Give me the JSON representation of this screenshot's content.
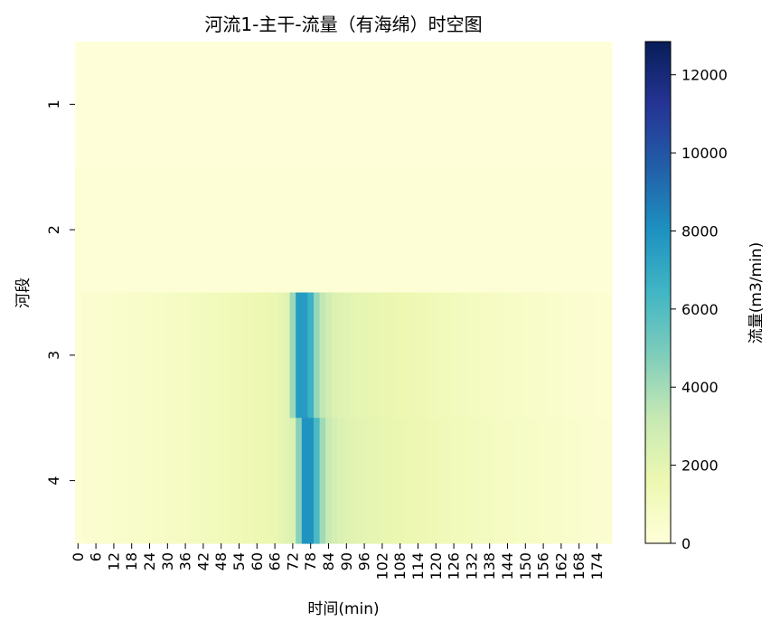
{
  "chart_data": {
    "type": "heatmap",
    "title": "河流1-主干-流量（有海绵）时空图",
    "xlabel": "时间(min)",
    "ylabel": "河段",
    "x_start": 0,
    "x_step": 2,
    "x_tick_labels": [
      "0",
      "6",
      "12",
      "18",
      "24",
      "30",
      "36",
      "42",
      "48",
      "54",
      "60",
      "66",
      "72",
      "78",
      "84",
      "90",
      "96",
      "102",
      "108",
      "114",
      "120",
      "126",
      "132",
      "138",
      "144",
      "150",
      "156",
      "162",
      "168",
      "174"
    ],
    "rows": [
      {
        "label": "1",
        "values": [
          45,
          45,
          45,
          45,
          45,
          45,
          45,
          45,
          45,
          45,
          45,
          45,
          45,
          45,
          45,
          45,
          45,
          45,
          45,
          45,
          45,
          45,
          45,
          45,
          45,
          45,
          45,
          45,
          45,
          45,
          45,
          45,
          45,
          45,
          45,
          45,
          45,
          45,
          45,
          45,
          45,
          45,
          45,
          45,
          45,
          45,
          45,
          45,
          45,
          45,
          45,
          45,
          45,
          45,
          45,
          45,
          45,
          45,
          45,
          45,
          45,
          45,
          45,
          45,
          45,
          45,
          45,
          45,
          45,
          45,
          45,
          45,
          45,
          45,
          45,
          45,
          45,
          45,
          45,
          45,
          45,
          45,
          45,
          45,
          45,
          45,
          45,
          45,
          45,
          45
        ]
      },
      {
        "label": "2",
        "values": [
          120,
          120,
          120,
          120,
          120,
          120,
          120,
          120,
          120,
          120,
          120,
          120,
          120,
          120,
          120,
          120,
          120,
          120,
          120,
          120,
          120,
          120,
          120,
          120,
          120,
          120,
          120,
          120,
          120,
          120,
          120,
          120,
          120,
          120,
          120,
          120,
          120,
          120,
          120,
          120,
          120,
          120,
          120,
          120,
          120,
          120,
          120,
          120,
          120,
          120,
          120,
          120,
          120,
          120,
          120,
          120,
          120,
          120,
          120,
          120,
          120,
          120,
          120,
          120,
          120,
          120,
          120,
          120,
          120,
          120,
          120,
          120,
          120,
          120,
          120,
          120,
          120,
          120,
          120,
          120,
          120,
          120,
          120,
          120,
          120,
          120,
          120,
          120,
          120,
          120
        ]
      },
      {
        "label": "3",
        "values": [
          150,
          350,
          380,
          410,
          440,
          470,
          500,
          530,
          560,
          590,
          620,
          650,
          690,
          730,
          770,
          810,
          850,
          890,
          930,
          970,
          1010,
          1060,
          1110,
          1160,
          1210,
          1260,
          1310,
          1360,
          1410,
          1460,
          1520,
          1580,
          1650,
          1750,
          1900,
          2100,
          4200,
          7600,
          7600,
          6600,
          4300,
          3300,
          2800,
          2400,
          2200,
          2100,
          2000,
          1950,
          1900,
          1850,
          1800,
          1750,
          1700,
          1650,
          1600,
          1550,
          1500,
          1450,
          1400,
          1350,
          1300,
          1250,
          1200,
          1150,
          1100,
          1050,
          1000,
          950,
          900,
          870,
          840,
          810,
          780,
          750,
          720,
          690,
          660,
          630,
          600,
          570,
          540,
          510,
          480,
          450,
          420,
          390,
          360,
          330,
          300,
          280
        ]
      },
      {
        "label": "4",
        "values": [
          150,
          350,
          380,
          410,
          440,
          470,
          500,
          530,
          560,
          590,
          620,
          650,
          690,
          730,
          770,
          810,
          850,
          890,
          930,
          970,
          1010,
          1060,
          1110,
          1160,
          1210,
          1260,
          1310,
          1360,
          1410,
          1460,
          1520,
          1580,
          1650,
          1750,
          1900,
          2100,
          2400,
          4600,
          7900,
          7900,
          6200,
          4100,
          3100,
          2650,
          2400,
          2250,
          2150,
          2050,
          2000,
          1950,
          1900,
          1850,
          1800,
          1750,
          1700,
          1650,
          1600,
          1550,
          1500,
          1450,
          1400,
          1350,
          1300,
          1250,
          1200,
          1150,
          1100,
          1050,
          1000,
          950,
          920,
          890,
          860,
          830,
          800,
          770,
          740,
          710,
          680,
          650,
          620,
          590,
          560,
          530,
          500,
          470,
          440,
          410,
          380,
          350
        ]
      }
    ],
    "colorbar": {
      "label": "流量(m3/min)",
      "vmin": 0,
      "vmax": 12850,
      "ticks": [
        0,
        2000,
        4000,
        6000,
        8000,
        10000,
        12000
      ],
      "colormap": "YlGnBu",
      "stops": [
        "#ffffd9",
        "#edf8b1",
        "#c7e9b4",
        "#7fcdbb",
        "#41b6c4",
        "#1d91c0",
        "#225ea8",
        "#253494",
        "#081d58"
      ]
    },
    "grid": false
  }
}
